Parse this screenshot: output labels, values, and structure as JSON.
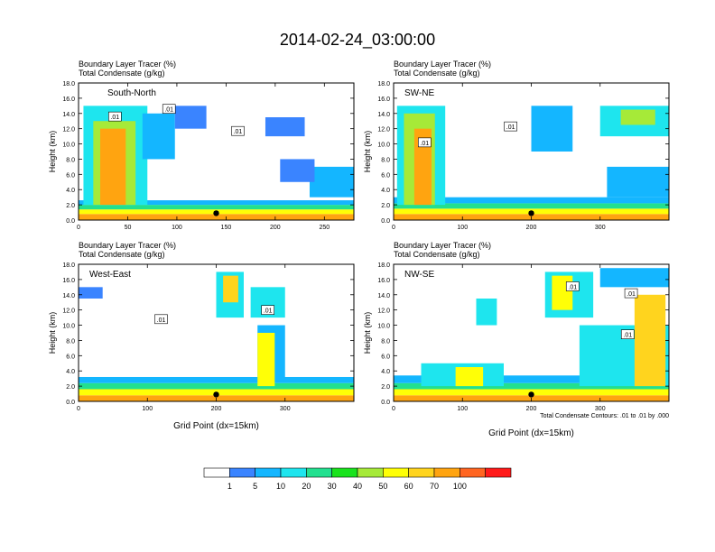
{
  "chart_data": {
    "type": "heatmap",
    "title": "2014-02-24_03:00:00",
    "xlabel": "Grid Point (dx=15km)",
    "ylabel": "Height (km)",
    "ylim": [
      0,
      18
    ],
    "y_ticks": [
      "0.0",
      "2.0",
      "4.0",
      "6.0",
      "8.0",
      "10.0",
      "12.0",
      "14.0",
      "16.0",
      "18.0"
    ],
    "contour_note": "Total Condensate Contours: .01 to .01 by .000",
    "colorbar": {
      "labels": [
        "1",
        "5",
        "10",
        "20",
        "30",
        "40",
        "50",
        "60",
        "70",
        "100"
      ],
      "colors": [
        "#ffffff",
        "#3a84ff",
        "#14b6ff",
        "#1ee5ee",
        "#22e08f",
        "#19e31d",
        "#a6ea38",
        "#ffff06",
        "#ffd41e",
        "#ffa410",
        "#ff6521",
        "#ff1a1a"
      ]
    },
    "panels": [
      {
        "name": "South-North",
        "label_line1": "Boundary Layer Tracer   (%)",
        "label_line2": "Total Condensate   (g/kg)",
        "xlim": [
          0,
          280
        ],
        "x_ticks": [
          0,
          50,
          100,
          150,
          200,
          250
        ],
        "marker_x": 140,
        "contour_labels": [
          {
            "text": ".01",
            "x": 37,
            "y": 13.6
          },
          {
            "text": ".01",
            "x": 92,
            "y": 14.6
          },
          {
            "text": ".01",
            "x": 162,
            "y": 11.7
          }
        ],
        "cells": [
          {
            "x0": 0,
            "x1": 280,
            "y0": 0,
            "y1": 0.8,
            "level": 9
          },
          {
            "x0": 0,
            "x1": 280,
            "y0": 0.8,
            "y1": 1.4,
            "level": 7
          },
          {
            "x0": 0,
            "x1": 280,
            "y0": 1.4,
            "y1": 2.0,
            "level": 4
          },
          {
            "x0": 0,
            "x1": 280,
            "y0": 2.0,
            "y1": 2.6,
            "level": 2
          },
          {
            "x0": 5,
            "x1": 70,
            "y0": 2,
            "y1": 15,
            "level": 3
          },
          {
            "x0": 15,
            "x1": 58,
            "y0": 2,
            "y1": 13,
            "level": 6
          },
          {
            "x0": 22,
            "x1": 48,
            "y0": 2,
            "y1": 12,
            "level": 9
          },
          {
            "x0": 65,
            "x1": 98,
            "y0": 8,
            "y1": 14,
            "level": 2
          },
          {
            "x0": 98,
            "x1": 130,
            "y0": 12,
            "y1": 15,
            "level": 1
          },
          {
            "x0": 190,
            "x1": 230,
            "y0": 11,
            "y1": 13.5,
            "level": 1
          },
          {
            "x0": 235,
            "x1": 280,
            "y0": 3,
            "y1": 7,
            "level": 2
          },
          {
            "x0": 205,
            "x1": 240,
            "y0": 5,
            "y1": 8,
            "level": 1
          }
        ]
      },
      {
        "name": "SW-NE",
        "label_line1": "Boundary Layer Tracer   (%)",
        "label_line2": "Total Condensate   (g/kg)",
        "xlim": [
          0,
          400
        ],
        "x_ticks": [
          0,
          100,
          200,
          300
        ],
        "marker_x": 200,
        "contour_labels": [
          {
            "text": ".01",
            "x": 45,
            "y": 10.2
          },
          {
            "text": ".01",
            "x": 170,
            "y": 12.3
          }
        ],
        "cells": [
          {
            "x0": 0,
            "x1": 400,
            "y0": 0,
            "y1": 0.8,
            "level": 9
          },
          {
            "x0": 0,
            "x1": 400,
            "y0": 0.8,
            "y1": 1.5,
            "level": 7
          },
          {
            "x0": 0,
            "x1": 400,
            "y0": 1.5,
            "y1": 2.2,
            "level": 4
          },
          {
            "x0": 0,
            "x1": 400,
            "y0": 2.2,
            "y1": 3.0,
            "level": 2
          },
          {
            "x0": 5,
            "x1": 75,
            "y0": 2,
            "y1": 15,
            "level": 3
          },
          {
            "x0": 15,
            "x1": 60,
            "y0": 2,
            "y1": 14,
            "level": 6
          },
          {
            "x0": 30,
            "x1": 55,
            "y0": 2,
            "y1": 12,
            "level": 9
          },
          {
            "x0": 200,
            "x1": 260,
            "y0": 9,
            "y1": 15,
            "level": 2
          },
          {
            "x0": 300,
            "x1": 400,
            "y0": 11,
            "y1": 15,
            "level": 3
          },
          {
            "x0": 330,
            "x1": 380,
            "y0": 12.5,
            "y1": 14.5,
            "level": 6
          },
          {
            "x0": 310,
            "x1": 400,
            "y0": 3,
            "y1": 7,
            "level": 2
          }
        ]
      },
      {
        "name": "West-East",
        "label_line1": "Boundary Layer Tracer   (%)",
        "label_line2": "Total Condensate   (g/kg)",
        "xlim": [
          0,
          400
        ],
        "x_ticks": [
          0,
          100,
          200,
          300
        ],
        "marker_x": 200,
        "contour_labels": [
          {
            "text": ".01",
            "x": 120,
            "y": 10.8
          },
          {
            "text": ".01",
            "x": 275,
            "y": 12.0
          }
        ],
        "cells": [
          {
            "x0": 0,
            "x1": 400,
            "y0": 0,
            "y1": 0.8,
            "level": 9
          },
          {
            "x0": 0,
            "x1": 400,
            "y0": 0.8,
            "y1": 1.6,
            "level": 7
          },
          {
            "x0": 0,
            "x1": 400,
            "y0": 1.6,
            "y1": 2.4,
            "level": 4
          },
          {
            "x0": 0,
            "x1": 400,
            "y0": 2.4,
            "y1": 3.2,
            "level": 2
          },
          {
            "x0": 0,
            "x1": 35,
            "y0": 13.5,
            "y1": 15,
            "level": 1
          },
          {
            "x0": 200,
            "x1": 240,
            "y0": 11,
            "y1": 17,
            "level": 3
          },
          {
            "x0": 210,
            "x1": 232,
            "y0": 13,
            "y1": 16.5,
            "level": 8
          },
          {
            "x0": 250,
            "x1": 300,
            "y0": 11,
            "y1": 15,
            "level": 3
          },
          {
            "x0": 260,
            "x1": 300,
            "y0": 3,
            "y1": 10,
            "level": 2
          },
          {
            "x0": 260,
            "x1": 285,
            "y0": 2,
            "y1": 9,
            "level": 7
          }
        ]
      },
      {
        "name": "NW-SE",
        "label_line1": "Boundary Layer Tracer   (%)",
        "label_line2": "Total Condensate   (g/kg)",
        "xlim": [
          0,
          400
        ],
        "x_ticks": [
          0,
          100,
          200,
          300
        ],
        "marker_x": 200,
        "contour_labels": [
          {
            "text": ".01",
            "x": 260,
            "y": 15.1
          },
          {
            "text": ".01",
            "x": 345,
            "y": 14.2
          },
          {
            "text": ".01",
            "x": 340,
            "y": 8.8
          }
        ],
        "cells": [
          {
            "x0": 0,
            "x1": 400,
            "y0": 0,
            "y1": 0.8,
            "level": 9
          },
          {
            "x0": 0,
            "x1": 400,
            "y0": 0.8,
            "y1": 1.6,
            "level": 7
          },
          {
            "x0": 0,
            "x1": 400,
            "y0": 1.6,
            "y1": 2.4,
            "level": 4
          },
          {
            "x0": 0,
            "x1": 400,
            "y0": 2.4,
            "y1": 3.4,
            "level": 2
          },
          {
            "x0": 40,
            "x1": 160,
            "y0": 2,
            "y1": 5,
            "level": 3
          },
          {
            "x0": 90,
            "x1": 130,
            "y0": 2,
            "y1": 4.5,
            "level": 7
          },
          {
            "x0": 270,
            "x1": 400,
            "y0": 2,
            "y1": 10,
            "level": 3
          },
          {
            "x0": 350,
            "x1": 395,
            "y0": 2,
            "y1": 14,
            "level": 8
          },
          {
            "x0": 220,
            "x1": 290,
            "y0": 11,
            "y1": 17,
            "level": 3
          },
          {
            "x0": 230,
            "x1": 260,
            "y0": 12,
            "y1": 16.5,
            "level": 7
          },
          {
            "x0": 120,
            "x1": 150,
            "y0": 10,
            "y1": 13.5,
            "level": 3
          },
          {
            "x0": 300,
            "x1": 400,
            "y0": 15,
            "y1": 17.5,
            "level": 2
          }
        ]
      }
    ]
  }
}
